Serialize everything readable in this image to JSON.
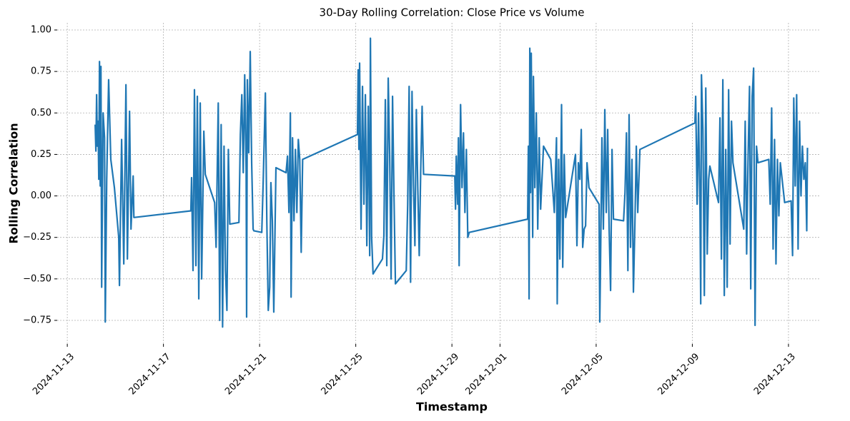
{
  "chart_data": {
    "type": "line",
    "title": "30-Day Rolling Correlation: Close Price vs Volume",
    "x_label": "Timestamp",
    "y_label": "Rolling Correlation",
    "grid": true,
    "color": "#1f77b4",
    "xlim": [
      20039.58,
      20071.34
    ],
    "ylim": [
      -0.892,
      1.043
    ],
    "xticks": [
      {
        "value": 20040,
        "label": "2024-11-13"
      },
      {
        "value": 20044,
        "label": "2024-11-17"
      },
      {
        "value": 20048,
        "label": "2024-11-21"
      },
      {
        "value": 20052,
        "label": "2024-11-25"
      },
      {
        "value": 20056,
        "label": "2024-11-29"
      },
      {
        "value": 20058,
        "label": "2024-12-01"
      },
      {
        "value": 20062,
        "label": "2024-12-05"
      },
      {
        "value": 20066,
        "label": "2024-12-09"
      },
      {
        "value": 20070,
        "label": "2024-12-13"
      }
    ],
    "yticks": [
      {
        "value": -0.75,
        "label": "−0.75"
      },
      {
        "value": -0.5,
        "label": "−0.50"
      },
      {
        "value": -0.25,
        "label": "−0.25"
      },
      {
        "value": 0,
        "label": "0.00"
      },
      0.25,
      {
        "value": 0.5,
        "label": "0.50"
      },
      0.75,
      {
        "value": 1,
        "label": "1.00"
      }
    ],
    "x": [
      20041.16,
      20041.19,
      20041.22,
      20041.25,
      20041.28,
      20041.31,
      20041.34,
      20041.37,
      20041.4,
      20041.43,
      20041.49,
      20041.55,
      20041.58,
      20041.64,
      20041.72,
      20041.81,
      20041.96,
      20042.14,
      20042.17,
      20042.26,
      20042.35,
      20042.44,
      20042.5,
      20042.59,
      20042.65,
      20042.74,
      20042.77,
      20045.14,
      20045.17,
      20045.23,
      20045.29,
      20045.35,
      20045.41,
      20045.47,
      20045.53,
      20045.59,
      20045.68,
      20045.74,
      20046.13,
      20046.19,
      20046.28,
      20046.34,
      20046.4,
      20046.46,
      20046.52,
      20046.58,
      20046.64,
      20046.7,
      20046.76,
      20047.14,
      20047.2,
      20047.26,
      20047.32,
      20047.38,
      20047.44,
      20047.46,
      20047.49,
      20047.55,
      20047.61,
      20047.67,
      20047.73,
      20047.76,
      20048.09,
      20048.15,
      20048.24,
      20048.3,
      20048.36,
      20048.42,
      20048.47,
      20048.53,
      20048.59,
      20048.68,
      20049.1,
      20049.16,
      20049.22,
      20049.28,
      20049.31,
      20049.37,
      20049.43,
      20049.49,
      20049.55,
      20049.61,
      20049.67,
      20049.73,
      20049.79,
      20052.07,
      20052.1,
      20052.13,
      20052.16,
      20052.22,
      20052.28,
      20052.34,
      20052.4,
      20052.46,
      20052.52,
      20052.58,
      20052.61,
      20052.66,
      20052.72,
      20053.11,
      20053.17,
      20053.23,
      20053.29,
      20053.35,
      20053.41,
      20053.47,
      20053.53,
      20053.59,
      20053.65,
      20054.1,
      20054.16,
      20054.22,
      20054.28,
      20054.34,
      20054.4,
      20054.46,
      20054.52,
      20054.58,
      20054.64,
      20054.7,
      20054.76,
      20054.82,
      20056.12,
      20056.15,
      20056.18,
      20056.24,
      20056.27,
      20056.3,
      20056.36,
      20056.42,
      20056.48,
      20056.54,
      20056.6,
      20056.66,
      20056.72,
      20059.15,
      20059.18,
      20059.21,
      20059.24,
      20059.27,
      20059.3,
      20059.36,
      20059.39,
      20059.45,
      20059.51,
      20059.57,
      20059.63,
      20059.69,
      20059.81,
      20060.11,
      20060.26,
      20060.35,
      20060.38,
      20060.44,
      20060.49,
      20060.56,
      20060.61,
      20060.67,
      20060.73,
      20061.14,
      20061.2,
      20061.26,
      20061.32,
      20061.38,
      20061.44,
      20061.5,
      20061.56,
      20061.62,
      20061.7,
      20062.12,
      20062.15,
      20062.18,
      20062.24,
      20062.3,
      20062.36,
      20062.42,
      20062.48,
      20062.54,
      20062.6,
      20062.66,
      20062.72,
      20063.14,
      20063.2,
      20063.26,
      20063.32,
      20063.37,
      20063.43,
      20063.49,
      20063.55,
      20063.61,
      20063.67,
      20063.73,
      20063.82,
      20066.11,
      20066.14,
      20066.2,
      20066.26,
      20066.32,
      20066.35,
      20066.38,
      20066.44,
      20066.5,
      20066.56,
      20066.62,
      20066.68,
      20066.73,
      20067.09,
      20067.15,
      20067.21,
      20067.27,
      20067.33,
      20067.39,
      20067.45,
      20067.51,
      20067.57,
      20067.63,
      20067.69,
      20068.14,
      20068.2,
      20068.26,
      20068.32,
      20068.38,
      20068.43,
      20068.49,
      20068.55,
      20068.61,
      20068.67,
      20068.73,
      20069.18,
      20069.24,
      20069.3,
      20069.36,
      20069.42,
      20069.48,
      20069.54,
      20069.6,
      20069.66,
      20069.84,
      20070.11,
      20070.17,
      20070.22,
      20070.28,
      20070.34,
      20070.4,
      20070.46,
      20070.52,
      20070.58,
      20070.64,
      20070.7,
      20070.76,
      20070.79
    ],
    "values": [
      0.43,
      0.27,
      0.61,
      0.3,
      0.45,
      0.1,
      0.81,
      0.06,
      0.78,
      -0.55,
      0.5,
      0.35,
      -0.76,
      0.1,
      0.7,
      0.22,
      0.05,
      -0.25,
      -0.54,
      0.34,
      -0.41,
      0.67,
      -0.38,
      0.51,
      -0.2,
      0.12,
      -0.13,
      -0.09,
      0.11,
      -0.45,
      0.64,
      -0.42,
      0.6,
      -0.62,
      0.56,
      -0.5,
      0.39,
      0.13,
      -0.04,
      -0.31,
      0.56,
      -0.75,
      0.43,
      -0.79,
      0.3,
      -0.45,
      -0.69,
      0.28,
      -0.17,
      -0.16,
      0.37,
      0.61,
      0.14,
      0.73,
      0.15,
      -0.73,
      0.7,
      0.26,
      0.87,
      0.2,
      -0.2,
      -0.21,
      -0.22,
      0.09,
      0.62,
      -0.15,
      -0.69,
      -0.55,
      0.08,
      -0.15,
      -0.7,
      0.17,
      0.14,
      0.24,
      -0.1,
      0.5,
      -0.61,
      0.35,
      -0.15,
      0.28,
      -0.1,
      0.34,
      0.22,
      -0.34,
      0.22,
      0.37,
      0.76,
      0.28,
      0.8,
      -0.2,
      0.66,
      -0.05,
      0.61,
      -0.3,
      0.54,
      -0.36,
      0.95,
      -0.25,
      -0.47,
      -0.38,
      -0.24,
      0.58,
      -0.42,
      0.71,
      0.25,
      -0.5,
      0.6,
      0.0,
      -0.53,
      -0.45,
      -0.05,
      0.66,
      -0.52,
      0.63,
      0.07,
      -0.3,
      0.52,
      0.05,
      -0.36,
      0.14,
      0.54,
      0.13,
      0.12,
      -0.08,
      0.24,
      -0.05,
      0.35,
      -0.42,
      0.55,
      0.05,
      0.38,
      -0.1,
      0.28,
      -0.25,
      -0.22,
      -0.14,
      0.3,
      -0.62,
      0.89,
      0.02,
      0.86,
      -0.25,
      0.72,
      0.05,
      0.5,
      -0.2,
      0.35,
      -0.08,
      0.3,
      0.22,
      -0.1,
      0.35,
      -0.65,
      0.22,
      -0.38,
      0.55,
      -0.43,
      0.25,
      -0.13,
      0.25,
      -0.3,
      0.2,
      0.1,
      0.4,
      -0.31,
      -0.2,
      -0.18,
      0.2,
      0.05,
      -0.05,
      -0.76,
      -0.43,
      0.35,
      -0.2,
      0.52,
      -0.1,
      0.4,
      -0.2,
      -0.57,
      0.28,
      -0.14,
      -0.15,
      0.02,
      0.38,
      -0.45,
      0.49,
      -0.31,
      0.22,
      -0.58,
      -0.18,
      0.3,
      -0.1,
      0.28,
      0.44,
      0.6,
      -0.05,
      0.5,
      -0.1,
      -0.65,
      0.73,
      0.4,
      -0.6,
      0.65,
      -0.35,
      0.1,
      0.18,
      -0.04,
      0.47,
      -0.38,
      0.7,
      -0.6,
      0.28,
      -0.55,
      0.64,
      -0.29,
      0.45,
      0.2,
      -0.2,
      0.45,
      -0.35,
      0.24,
      0.66,
      -0.56,
      0.6,
      0.77,
      -0.78,
      0.3,
      0.2,
      0.22,
      -0.05,
      0.53,
      -0.32,
      0.34,
      -0.41,
      0.22,
      -0.12,
      0.2,
      -0.04,
      -0.03,
      -0.36,
      0.59,
      0.06,
      0.61,
      -0.32,
      0.45,
      0.0,
      0.3,
      0.1,
      0.2,
      -0.21,
      0.29
    ]
  }
}
